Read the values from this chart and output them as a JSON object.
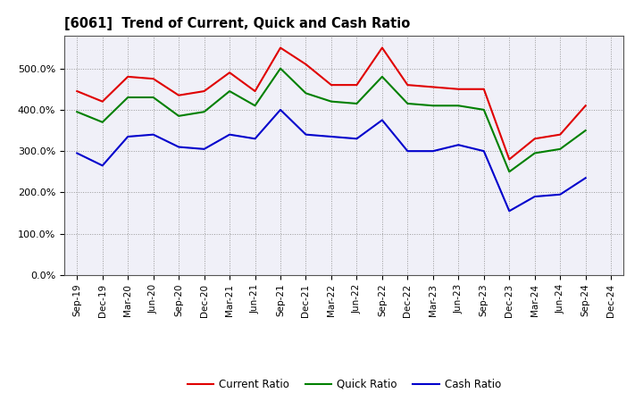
{
  "title": "[6061]  Trend of Current, Quick and Cash Ratio",
  "x_labels": [
    "Sep-19",
    "Dec-19",
    "Mar-20",
    "Jun-20",
    "Sep-20",
    "Dec-20",
    "Mar-21",
    "Jun-21",
    "Sep-21",
    "Dec-21",
    "Mar-22",
    "Jun-22",
    "Sep-22",
    "Dec-22",
    "Mar-23",
    "Jun-23",
    "Sep-23",
    "Dec-23",
    "Mar-24",
    "Jun-24",
    "Sep-24",
    "Dec-24"
  ],
  "current_ratio": [
    445,
    420,
    480,
    475,
    435,
    445,
    490,
    445,
    550,
    510,
    460,
    460,
    550,
    460,
    455,
    450,
    450,
    280,
    330,
    340,
    410,
    null
  ],
  "quick_ratio": [
    395,
    370,
    430,
    430,
    385,
    395,
    445,
    410,
    500,
    440,
    420,
    415,
    480,
    415,
    410,
    410,
    400,
    250,
    295,
    305,
    350,
    null
  ],
  "cash_ratio": [
    295,
    265,
    335,
    340,
    310,
    305,
    340,
    330,
    400,
    340,
    335,
    330,
    375,
    300,
    300,
    315,
    300,
    155,
    190,
    195,
    235,
    null
  ],
  "current_color": "#e00000",
  "quick_color": "#008000",
  "cash_color": "#0000cc",
  "ylim": [
    0,
    580
  ],
  "yticks": [
    0,
    100,
    200,
    300,
    400,
    500
  ],
  "ytick_labels": [
    "0.0%",
    "100.0%",
    "200.0%",
    "300.0%",
    "400.0%",
    "500.0%"
  ],
  "background_color": "#ffffff",
  "plot_bg_color": "#f0f0f8",
  "grid_color": "#999999",
  "legend_labels": [
    "Current Ratio",
    "Quick Ratio",
    "Cash Ratio"
  ],
  "linewidth": 1.5
}
